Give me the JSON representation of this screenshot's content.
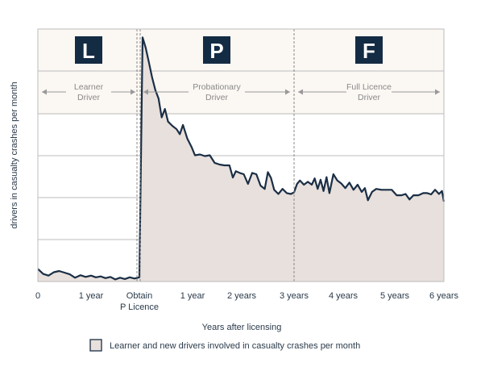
{
  "chart_data": {
    "type": "area",
    "title": "",
    "xlabel": "Years after licensing",
    "ylabel": "drivers in casualty crashes per month",
    "grid": true,
    "legend": "Learner and new drivers involved in casualty crashes per month",
    "colors": {
      "fill": "#e8e0dc",
      "line": "#1a2e45",
      "band": "#fbf7f3",
      "grid": "#bdbdbd",
      "badge": "#142b44",
      "divider": "#888888"
    },
    "x_ticks": [
      {
        "value": 0,
        "label": "0"
      },
      {
        "value": 1,
        "label": "1 year"
      },
      {
        "value": 2,
        "label": "Obtain",
        "label2": "P Licence"
      },
      {
        "value": 3,
        "label": "1 year"
      },
      {
        "value": 4,
        "label": "2 years"
      },
      {
        "value": 5,
        "label": "3 years"
      },
      {
        "value": 6,
        "label": "4 years"
      },
      {
        "value": 7,
        "label": "5 years"
      },
      {
        "value": 8,
        "label": "6 years"
      }
    ],
    "xlim": [
      0,
      8
    ],
    "ylim": [
      0,
      6
    ],
    "phases": [
      {
        "letter": "L",
        "label1": "Learner",
        "label2": "Driver",
        "start": 0,
        "end": 2
      },
      {
        "letter": "P",
        "label1": "Probationary",
        "label2": "Driver",
        "start": 2,
        "end": 5
      },
      {
        "letter": "F",
        "label1": "Full Licence",
        "label2": "Driver",
        "start": 5,
        "end": 8
      }
    ],
    "series": [
      {
        "name": "Learner and new drivers involved in casualty crashes per month",
        "points": [
          [
            0.0,
            0.3
          ],
          [
            0.1,
            0.18
          ],
          [
            0.2,
            0.14
          ],
          [
            0.3,
            0.22
          ],
          [
            0.4,
            0.25
          ],
          [
            0.5,
            0.21
          ],
          [
            0.6,
            0.17
          ],
          [
            0.7,
            0.09
          ],
          [
            0.8,
            0.15
          ],
          [
            0.9,
            0.11
          ],
          [
            1.0,
            0.14
          ],
          [
            1.1,
            0.1
          ],
          [
            1.2,
            0.12
          ],
          [
            1.3,
            0.08
          ],
          [
            1.4,
            0.11
          ],
          [
            1.5,
            0.05
          ],
          [
            1.6,
            0.09
          ],
          [
            1.7,
            0.06
          ],
          [
            1.8,
            0.1
          ],
          [
            1.9,
            0.07
          ],
          [
            2.0,
            0.1
          ],
          [
            2.06,
            5.8
          ],
          [
            2.12,
            5.55
          ],
          [
            2.18,
            5.2
          ],
          [
            2.24,
            4.85
          ],
          [
            2.3,
            4.55
          ],
          [
            2.36,
            4.35
          ],
          [
            2.42,
            3.9
          ],
          [
            2.48,
            4.1
          ],
          [
            2.54,
            3.8
          ],
          [
            2.62,
            3.7
          ],
          [
            2.7,
            3.62
          ],
          [
            2.76,
            3.5
          ],
          [
            2.82,
            3.72
          ],
          [
            2.9,
            3.4
          ],
          [
            2.98,
            3.2
          ],
          [
            3.05,
            3.0
          ],
          [
            3.15,
            3.02
          ],
          [
            3.25,
            2.98
          ],
          [
            3.35,
            3.0
          ],
          [
            3.45,
            2.82
          ],
          [
            3.55,
            2.78
          ],
          [
            3.65,
            2.76
          ],
          [
            3.75,
            2.76
          ],
          [
            3.82,
            2.47
          ],
          [
            3.88,
            2.62
          ],
          [
            3.96,
            2.58
          ],
          [
            4.04,
            2.55
          ],
          [
            4.12,
            2.32
          ],
          [
            4.2,
            2.58
          ],
          [
            4.28,
            2.55
          ],
          [
            4.36,
            2.28
          ],
          [
            4.44,
            2.2
          ],
          [
            4.5,
            2.6
          ],
          [
            4.56,
            2.46
          ],
          [
            4.62,
            2.18
          ],
          [
            4.7,
            2.08
          ],
          [
            4.78,
            2.2
          ],
          [
            4.86,
            2.1
          ],
          [
            4.94,
            2.08
          ],
          [
            5.0,
            2.12
          ],
          [
            5.06,
            2.32
          ],
          [
            5.12,
            2.4
          ],
          [
            5.2,
            2.3
          ],
          [
            5.28,
            2.37
          ],
          [
            5.36,
            2.3
          ],
          [
            5.42,
            2.45
          ],
          [
            5.48,
            2.2
          ],
          [
            5.54,
            2.42
          ],
          [
            5.6,
            2.15
          ],
          [
            5.66,
            2.48
          ],
          [
            5.72,
            2.1
          ],
          [
            5.8,
            2.55
          ],
          [
            5.88,
            2.4
          ],
          [
            5.96,
            2.33
          ],
          [
            6.04,
            2.22
          ],
          [
            6.12,
            2.35
          ],
          [
            6.2,
            2.18
          ],
          [
            6.28,
            2.3
          ],
          [
            6.36,
            2.13
          ],
          [
            6.42,
            2.22
          ],
          [
            6.48,
            1.93
          ],
          [
            6.56,
            2.13
          ],
          [
            6.64,
            2.2
          ],
          [
            6.74,
            2.18
          ],
          [
            6.84,
            2.18
          ],
          [
            6.94,
            2.18
          ],
          [
            7.04,
            2.05
          ],
          [
            7.14,
            2.05
          ],
          [
            7.22,
            2.08
          ],
          [
            7.3,
            1.95
          ],
          [
            7.38,
            2.05
          ],
          [
            7.48,
            2.05
          ],
          [
            7.58,
            2.1
          ],
          [
            7.66,
            2.1
          ],
          [
            7.74,
            2.07
          ],
          [
            7.82,
            2.18
          ],
          [
            7.9,
            2.08
          ],
          [
            7.96,
            2.15
          ],
          [
            8.0,
            1.9
          ]
        ]
      }
    ]
  }
}
